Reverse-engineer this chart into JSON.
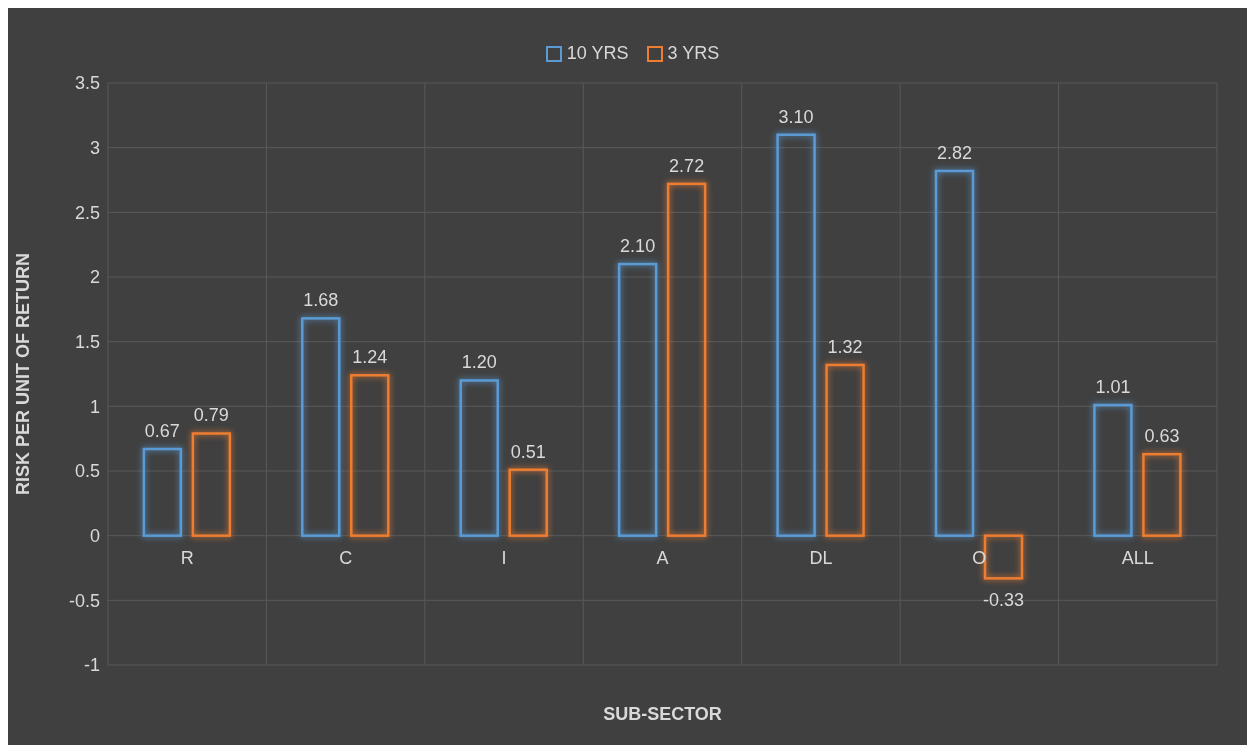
{
  "chart_data": {
    "type": "bar",
    "xlabel": "SUB-SECTOR",
    "ylabel": "RISK PER UNIT OF RETURN",
    "categories": [
      "R",
      "C",
      "I",
      "A",
      "DL",
      "O",
      "ALL"
    ],
    "series": [
      {
        "name": "10 YRS",
        "color": "#5b9bd5",
        "values": [
          0.67,
          1.68,
          1.2,
          2.1,
          3.1,
          2.82,
          1.01
        ],
        "value_labels": [
          "0.67",
          "1.68",
          "1.20",
          "2.10",
          "3.10",
          "2.82",
          "1.01"
        ]
      },
      {
        "name": "3 YRS",
        "color": "#ed7d31",
        "values": [
          0.79,
          1.24,
          0.51,
          2.72,
          1.32,
          -0.33,
          0.63
        ],
        "value_labels": [
          "0.79",
          "1.24",
          "0.51",
          "2.72",
          "1.32",
          "-0.33",
          "0.63"
        ]
      }
    ],
    "ylim": [
      -1,
      3.5
    ],
    "yticks": [
      -1,
      -0.5,
      0,
      0.5,
      1,
      1.5,
      2,
      2.5,
      3,
      3.5
    ],
    "grid": true,
    "legend": "top"
  }
}
